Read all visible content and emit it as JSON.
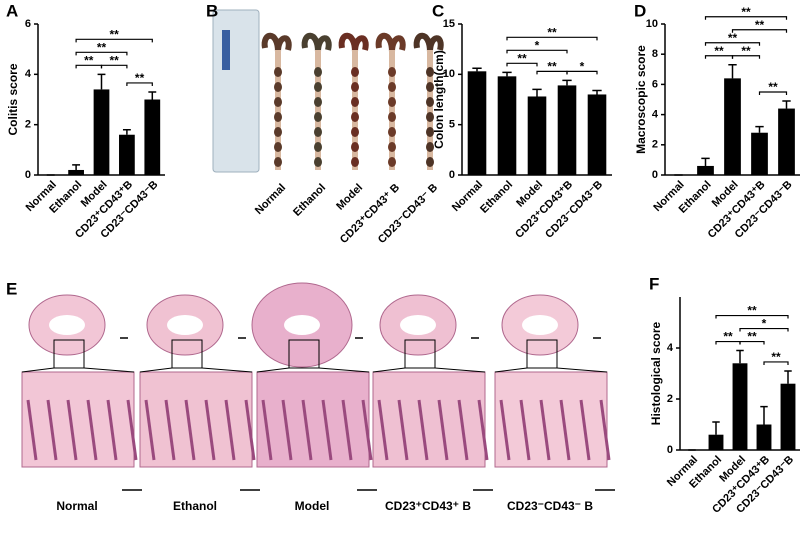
{
  "chart_data": [
    {
      "type": "bar",
      "panel": "A",
      "y_label": "Colitis score",
      "color": "#000000",
      "categories": [
        "Normal",
        "Ethanol",
        "Model",
        "CD23⁺CD43⁺B",
        "CD23⁻CD43⁻B"
      ],
      "values": [
        0,
        0.2,
        3.4,
        1.6,
        3.0
      ],
      "errors": [
        0,
        0.2,
        0.6,
        0.2,
        0.3
      ],
      "ylim": [
        0,
        6
      ],
      "yticks": [
        0,
        2,
        4,
        6
      ],
      "annotations": [
        {
          "label": "**",
          "between": [
            "CD23⁺CD43⁺B",
            "CD23⁻CD43⁻B"
          ]
        },
        {
          "label": "**",
          "between": [
            "Ethanol",
            "Model"
          ]
        },
        {
          "label": "**",
          "between": [
            "Model",
            "CD23⁺CD43⁺B"
          ]
        },
        {
          "label": "**",
          "between": [
            "Ethanol",
            "CD23⁺CD43⁺B"
          ]
        },
        {
          "label": "**",
          "between": [
            "Ethanol",
            "CD23⁻CD43⁻B"
          ]
        }
      ]
    },
    {
      "type": "bar",
      "panel": "C",
      "y_label": "Colon length(cm)",
      "color": "#000000",
      "categories": [
        "Normal",
        "Ethanol",
        "Model",
        "CD23⁺CD43⁺B",
        "CD23⁻CD43⁻B"
      ],
      "values": [
        10.3,
        9.8,
        7.8,
        8.9,
        8.0
      ],
      "errors": [
        0.3,
        0.4,
        0.7,
        0.5,
        0.4
      ],
      "ylim": [
        0,
        15
      ],
      "yticks": [
        0,
        5,
        10,
        15
      ],
      "annotations": [
        {
          "label": "*",
          "between": [
            "CD23⁺CD43⁺B",
            "CD23⁻CD43⁻B"
          ]
        },
        {
          "label": "**",
          "between": [
            "Model",
            "CD23⁺CD43⁺B"
          ]
        },
        {
          "label": "**",
          "between": [
            "Ethanol",
            "Model"
          ]
        },
        {
          "label": "*",
          "between": [
            "Ethanol",
            "CD23⁺CD43⁺B"
          ]
        },
        {
          "label": "**",
          "between": [
            "Ethanol",
            "CD23⁻CD43⁻B"
          ]
        }
      ]
    },
    {
      "type": "bar",
      "panel": "D",
      "y_label": "Macroscopic score",
      "color": "#000000",
      "categories": [
        "Normal",
        "Ethanol",
        "Model",
        "CD23⁺CD43⁺B",
        "CD23⁻CD43⁻B"
      ],
      "values": [
        0,
        0.6,
        6.4,
        2.8,
        4.4
      ],
      "errors": [
        0,
        0.5,
        0.9,
        0.4,
        0.5
      ],
      "ylim": [
        0,
        10
      ],
      "yticks": [
        0,
        2,
        4,
        6,
        8,
        10
      ],
      "annotations": [
        {
          "label": "**",
          "between": [
            "CD23⁺CD43⁺B",
            "CD23⁻CD43⁻B"
          ]
        },
        {
          "label": "**",
          "between": [
            "Ethanol",
            "Model"
          ]
        },
        {
          "label": "**",
          "between": [
            "Model",
            "CD23⁺CD43⁺B"
          ]
        },
        {
          "label": "**",
          "between": [
            "Ethanol",
            "CD23⁺CD43⁺B"
          ]
        },
        {
          "label": "**",
          "between": [
            "Model",
            "CD23⁻CD43⁻B"
          ]
        },
        {
          "label": "**",
          "between": [
            "Ethanol",
            "CD23⁻CD43⁻B"
          ]
        }
      ]
    },
    {
      "type": "bar",
      "panel": "F",
      "y_label": "Histological score",
      "color": "#000000",
      "categories": [
        "Normal",
        "Ethanol",
        "Model",
        "CD23⁺CD43⁺B",
        "CD23⁻CD43⁻B"
      ],
      "values": [
        0,
        0.6,
        3.4,
        1.0,
        2.6
      ],
      "errors": [
        0,
        0.5,
        0.5,
        0.7,
        0.5
      ],
      "ylim": [
        0,
        6
      ],
      "yticks": [
        0,
        2,
        4
      ],
      "annotations": [
        {
          "label": "**",
          "between": [
            "CD23⁺CD43⁺B",
            "CD23⁻CD43⁻B"
          ]
        },
        {
          "label": "**",
          "between": [
            "Ethanol",
            "Model"
          ]
        },
        {
          "label": "**",
          "between": [
            "Model",
            "CD23⁺CD43⁺B"
          ]
        },
        {
          "label": "*",
          "between": [
            "Model",
            "CD23⁻CD43⁻B"
          ]
        },
        {
          "label": "**",
          "between": [
            "Ethanol",
            "CD23⁻CD43⁻B"
          ]
        }
      ]
    }
  ],
  "photo_panel": {
    "panel": "B",
    "labels": [
      "Normal",
      "Ethanol",
      "Model",
      "CD23⁺CD43⁺ B",
      "CD23⁻CD43⁻ B"
    ]
  },
  "histology_panel": {
    "panel": "E",
    "labels": [
      "Normal",
      "Ethanol",
      "Model",
      "CD23⁺CD43⁺ B",
      "CD23⁻CD43⁻ B"
    ]
  }
}
